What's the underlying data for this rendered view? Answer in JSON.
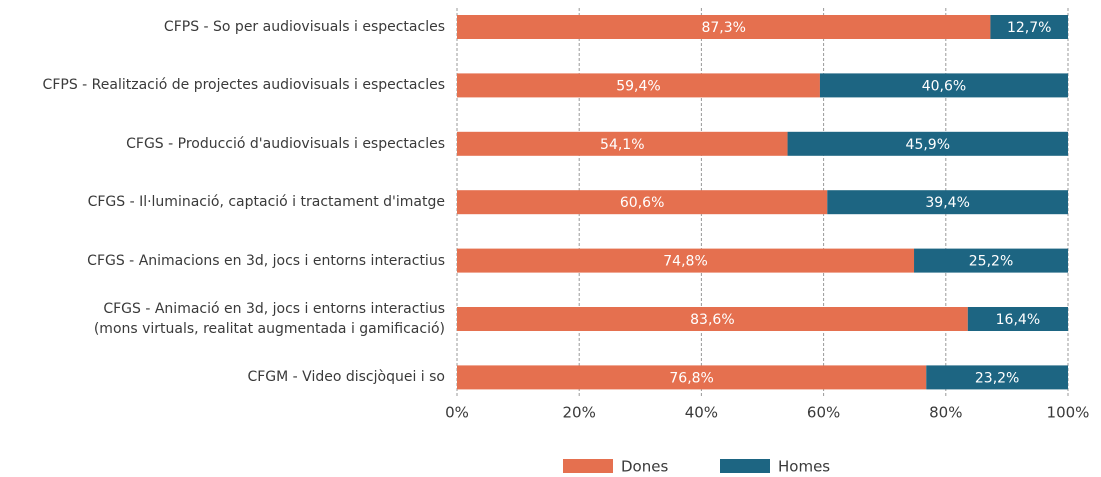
{
  "chart_data": {
    "type": "stacked-barh",
    "categories": [
      "CFPS - So per audiovisuals i espectacles",
      "CFPS - Realització de projectes audiovisuals i espectacles",
      "CFGS - Producció d'audiovisuals i espectacles",
      "CFGS - Il·luminació, captació i tractament d'imatge",
      "CFGS - Animacions en 3d, jocs i entorns interactius",
      "CFGS - Animació en 3d, jocs i entorns interactius\n(mons virtuals, realitat augmentada i gamificació)",
      "CFGM - Video discjòquei i so"
    ],
    "series": [
      {
        "name": "Dones",
        "color": "#e5704f",
        "values": [
          87.3,
          59.4,
          54.1,
          60.6,
          74.8,
          83.6,
          76.8
        ],
        "value_labels": [
          "87,3%",
          "59,4%",
          "54,1%",
          "60,6%",
          "74,8%",
          "83,6%",
          "76,8%"
        ]
      },
      {
        "name": "Homes",
        "color": "#1d6582",
        "values": [
          12.7,
          40.6,
          45.9,
          39.4,
          25.2,
          16.4,
          23.2
        ],
        "value_labels": [
          "12,7%",
          "40,6%",
          "45,9%",
          "39,4%",
          "25,2%",
          "16,4%",
          "23,2%"
        ]
      }
    ],
    "xlim": [
      0,
      100
    ],
    "xticks": [
      {
        "value": 0,
        "label": "0%"
      },
      {
        "value": 20,
        "label": "20%"
      },
      {
        "value": 40,
        "label": "40%"
      },
      {
        "value": 60,
        "label": "60%"
      },
      {
        "value": 80,
        "label": "80%"
      },
      {
        "value": 100,
        "label": "100%"
      }
    ],
    "grid": true,
    "legend": "bottom"
  }
}
